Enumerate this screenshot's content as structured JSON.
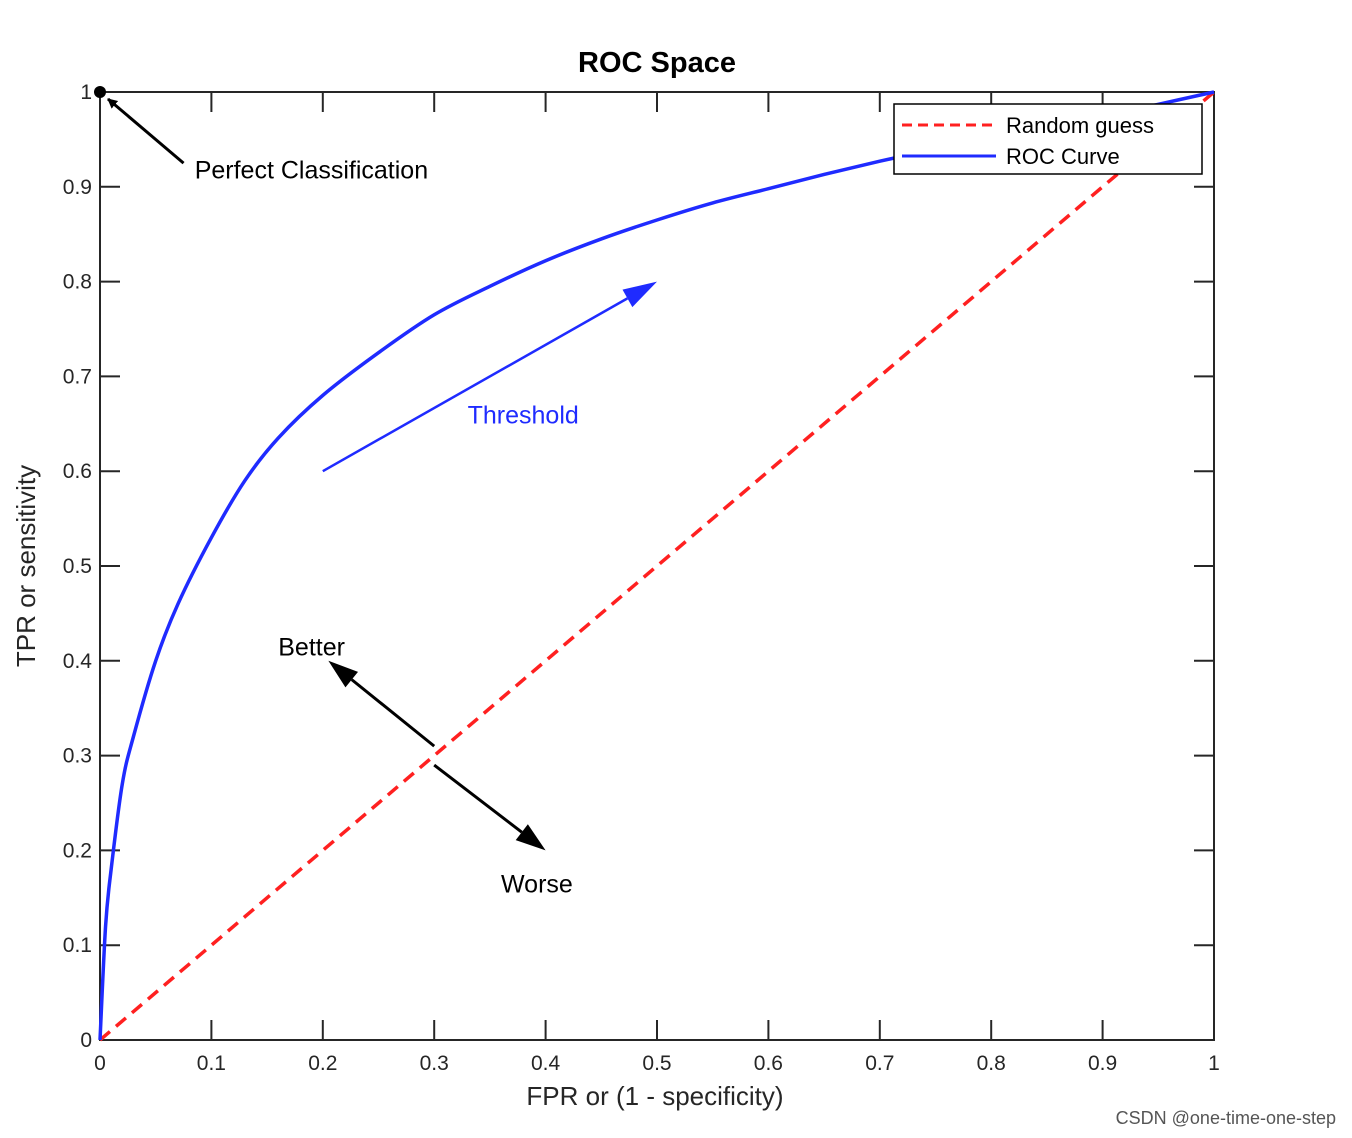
{
  "chart_data": {
    "type": "line",
    "title": "ROC Space",
    "xlabel": "FPR or (1 - specificity)",
    "ylabel": "TPR or sensitivity",
    "xlim": [
      0,
      1
    ],
    "ylim": [
      0,
      1
    ],
    "xticks": [
      "0",
      "0.1",
      "0.2",
      "0.3",
      "0.4",
      "0.5",
      "0.6",
      "0.7",
      "0.8",
      "0.9",
      "1"
    ],
    "yticks": [
      "0",
      "0.1",
      "0.2",
      "0.3",
      "0.4",
      "0.5",
      "0.6",
      "0.7",
      "0.8",
      "0.9",
      "1"
    ],
    "grid": false,
    "legend_position": "top-right",
    "series": [
      {
        "name": "Random guess",
        "style": "dashed",
        "color": "#ff2020",
        "x": [
          0,
          1
        ],
        "y": [
          0,
          1
        ]
      },
      {
        "name": "ROC Curve",
        "style": "solid",
        "color": "#1f2bff",
        "x": [
          0,
          0.005,
          0.01,
          0.02,
          0.03,
          0.05,
          0.07,
          0.1,
          0.13,
          0.16,
          0.2,
          0.25,
          0.3,
          0.35,
          0.4,
          0.45,
          0.5,
          0.55,
          0.6,
          0.65,
          0.7,
          0.75,
          0.8,
          0.85,
          0.9,
          0.95,
          1.0
        ],
        "y": [
          0,
          0.12,
          0.18,
          0.27,
          0.32,
          0.4,
          0.46,
          0.53,
          0.59,
          0.635,
          0.68,
          0.725,
          0.765,
          0.795,
          0.822,
          0.845,
          0.865,
          0.883,
          0.898,
          0.913,
          0.927,
          0.94,
          0.952,
          0.963,
          0.974,
          0.987,
          1.0
        ]
      }
    ],
    "annotations": {
      "perfect": {
        "text": "Perfect Classification",
        "point": [
          0,
          1
        ],
        "arrow_from": [
          0.075,
          0.925
        ],
        "text_pos": [
          0.085,
          0.918
        ]
      },
      "threshold": {
        "text": "Threshold",
        "arrow_from": [
          0.2,
          0.6
        ],
        "arrow_to": [
          0.5,
          0.8
        ],
        "text_pos": [
          0.33,
          0.66
        ],
        "color": "#1f2bff"
      },
      "better": {
        "text": "Better",
        "arrow_from": [
          0.3,
          0.31
        ],
        "arrow_to": [
          0.205,
          0.4
        ],
        "text_pos": [
          0.16,
          0.415
        ]
      },
      "worse": {
        "text": "Worse",
        "arrow_from": [
          0.3,
          0.29
        ],
        "arrow_to": [
          0.4,
          0.2
        ],
        "text_pos": [
          0.36,
          0.165
        ]
      }
    },
    "colors": {
      "axes": "#262626",
      "random": "#ff2020",
      "roc": "#1f2bff",
      "annotation": "#000000"
    }
  },
  "watermark": "CSDN @one-time-one-step"
}
